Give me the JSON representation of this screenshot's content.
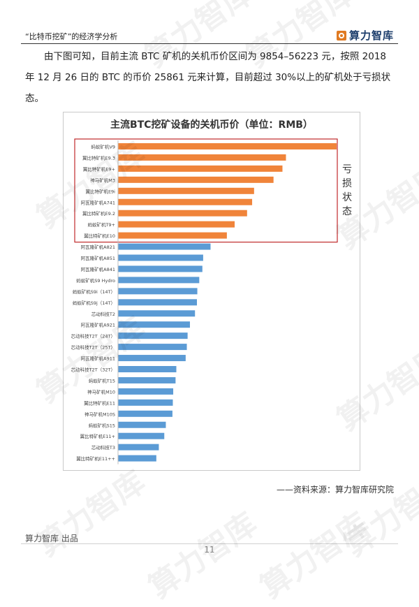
{
  "header": {
    "title": "“比特币挖矿”的经济学分析",
    "logo_text": "算力智库"
  },
  "paragraph": "由下图可知，目前主流 BTC 矿机的关机币价区间为 9854–56223 元，按照 2018 年 12 月 26 日的 BTC 的币价 25861 元来计算，目前超过 30%以上的矿机处于亏损状态。",
  "chart_data": {
    "type": "bar",
    "orientation": "horizontal",
    "title": "主流BTC挖矿设备的关机币价（单位：RMB）",
    "categories": [
      "蚂蚁矿机V9",
      "翼比特矿机E9.3",
      "翼比特矿机E9+",
      "神马矿机M3",
      "翼比特矿机E9i",
      "阿瓦隆矿机A741",
      "翼比特矿机E9.2",
      "蚂蚁矿机T9+",
      "翼比特矿机E10",
      "阿瓦隆矿机A821",
      "阿瓦隆矿机A851",
      "阿瓦隆矿机A841",
      "蚂蚁矿机S9 Hydro",
      "蚂蚁矿机S9i（14T）",
      "蚂蚁矿机S9j（14T）",
      "芯动科技T2",
      "阿瓦隆矿机A921",
      "芯动科技T2T（24T）",
      "芯动科技T2T（25T）",
      "阿瓦隆矿机A911",
      "芯动科技T2T（32T）",
      "蚂蚁矿机T15",
      "神马矿机M10",
      "翼比特矿机E11",
      "神马矿机M10S",
      "蚂蚁矿机S15",
      "翼比特矿机E11+",
      "芯动科技T3",
      "翼比特矿机E11++"
    ],
    "values": [
      56223,
      43200,
      42300,
      40000,
      35000,
      34500,
      33200,
      30000,
      28000,
      23800,
      21900,
      21700,
      20900,
      20400,
      20300,
      19800,
      18500,
      17900,
      17700,
      17400,
      15000,
      14800,
      14200,
      14100,
      14000,
      12300,
      11900,
      10500,
      9854
    ],
    "loss_count": 9,
    "colors": {
      "loss": "#f0843a",
      "normal": "#5b9bd5"
    },
    "x_ticks": [
      0,
      10000,
      20000,
      30000,
      40000,
      50000,
      60000
    ],
    "xlim": [
      0,
      60000
    ],
    "annotation": "亏损状态",
    "annotation_color": "#c0292b",
    "grid": false
  },
  "source": "——资料来源：算力智库研究院",
  "footer": {
    "publisher": "算力智库 出品",
    "page": "11"
  },
  "watermark": "算力智库"
}
